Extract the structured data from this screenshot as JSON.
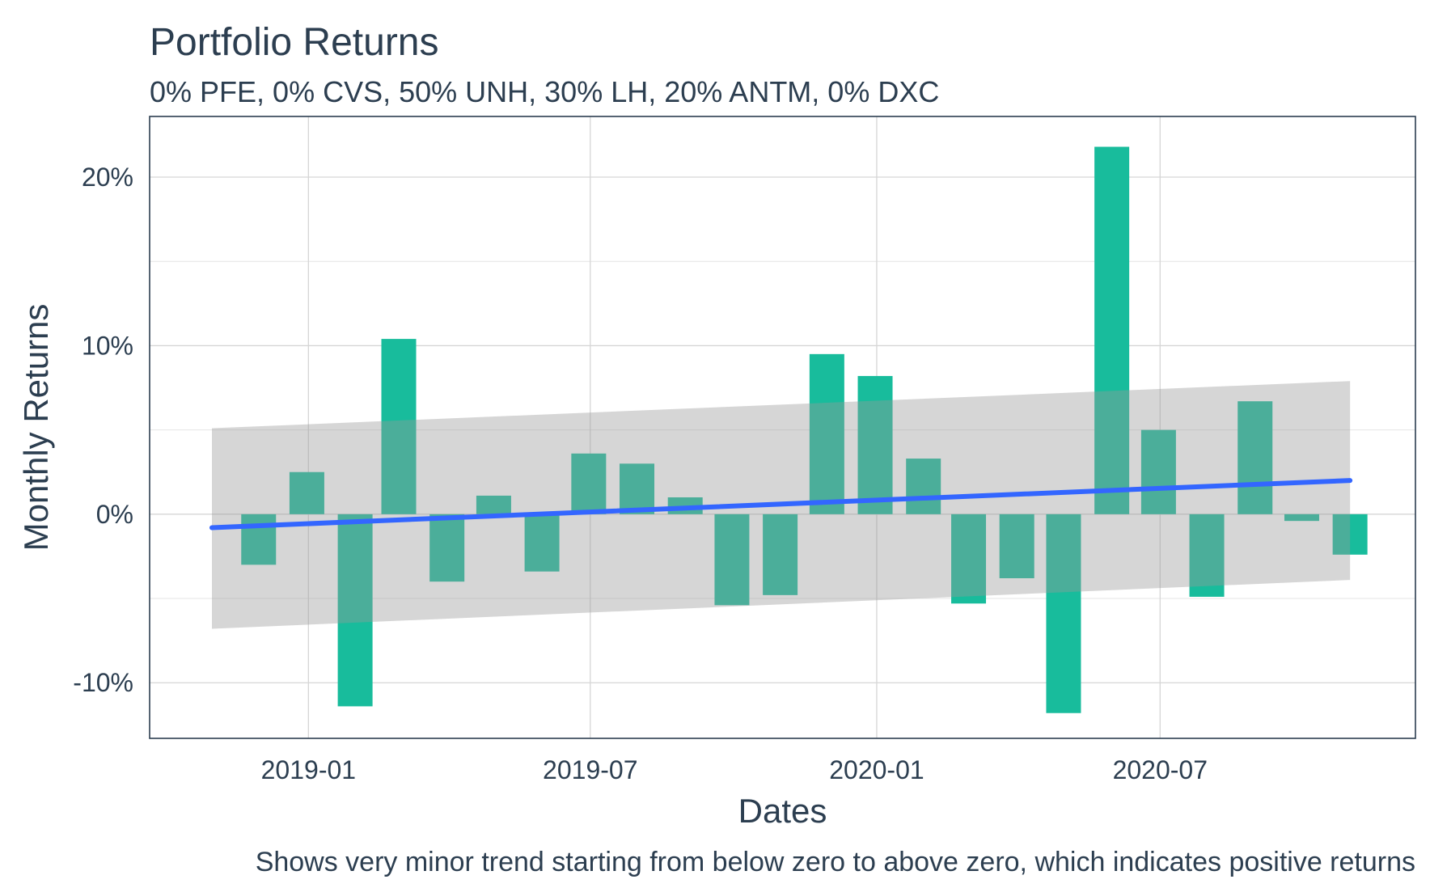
{
  "chart_data": {
    "type": "bar",
    "title": "Portfolio Returns",
    "subtitle": "0% PFE, 0% CVS, 50% UNH, 30% LH, 20% ANTM, 0% DXC",
    "xlabel": "Dates",
    "ylabel": "Monthly Returns",
    "caption": "Shows very minor trend starting from below zero to above zero, which indicates positive returns",
    "x": [
      "2018-11-30",
      "2018-12-31",
      "2019-01-31",
      "2019-02-28",
      "2019-03-31",
      "2019-04-30",
      "2019-05-31",
      "2019-06-30",
      "2019-07-31",
      "2019-08-31",
      "2019-09-30",
      "2019-10-31",
      "2019-11-30",
      "2019-12-31",
      "2020-01-31",
      "2020-02-29",
      "2020-03-31",
      "2020-04-30",
      "2020-05-31",
      "2020-06-30",
      "2020-07-31",
      "2020-08-31",
      "2020-09-30",
      "2020-10-31",
      "2020-11-30"
    ],
    "values": [
      -3.0,
      2.5,
      -11.4,
      10.4,
      -4.0,
      1.1,
      -3.4,
      3.6,
      3.0,
      1.0,
      -5.4,
      -4.8,
      9.5,
      8.2,
      3.3,
      -5.3,
      -3.8,
      -11.8,
      21.8,
      5.0,
      -4.9,
      6.7,
      -0.4,
      -2.4,
      null
    ],
    "x_ticks": [
      "2019-01",
      "2019-07",
      "2020-01",
      "2020-07"
    ],
    "y_ticks": [
      "-10%",
      "0%",
      "10%",
      "20%"
    ],
    "ylim": [
      -13.3,
      23.6
    ],
    "trend": {
      "x": [
        "2018-10-31",
        "2020-10-31"
      ],
      "y": [
        -0.8,
        2.0
      ],
      "ci_lower": [
        -6.8,
        -3.9
      ],
      "ci_upper": [
        5.1,
        7.9
      ]
    },
    "grid": true,
    "colors": {
      "bar": "#18bc9c",
      "trend_line": "#3366ff",
      "confidence_band": "#999999",
      "text": "#2c3e50",
      "panel_border": "#2c3e50"
    }
  }
}
